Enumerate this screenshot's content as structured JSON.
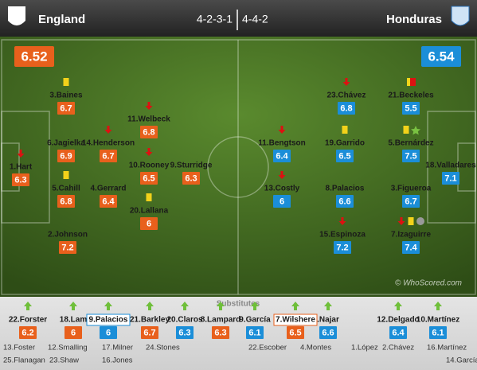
{
  "header": {
    "home_team": "England",
    "away_team": "Honduras",
    "home_formation": "4-2-3-1",
    "away_formation": "4-4-2"
  },
  "team_ratings": {
    "home": 6.52,
    "away": 6.54
  },
  "home_players": [
    {
      "name": "1.Hart",
      "rating": 6.3,
      "events": [
        "sub-off"
      ]
    },
    {
      "name": "3.Baines",
      "rating": 6.7,
      "events": [
        "yellow"
      ]
    },
    {
      "name": "6.Jagielka",
      "rating": 6.9,
      "events": []
    },
    {
      "name": "5.Cahill",
      "rating": 6.8,
      "events": [
        "yellow"
      ]
    },
    {
      "name": "2.Johnson",
      "rating": 7.2,
      "events": []
    },
    {
      "name": "14.Henderson",
      "rating": 6.7,
      "events": [
        "sub-off"
      ]
    },
    {
      "name": "4.Gerrard",
      "rating": 6.4,
      "events": []
    },
    {
      "name": "11.Welbeck",
      "rating": 6.8,
      "events": [
        "sub-off"
      ]
    },
    {
      "name": "10.Rooney",
      "rating": 6.5,
      "events": [
        "sub-off"
      ]
    },
    {
      "name": "20.Lallana",
      "rating": 6.0,
      "events": [
        "yellow"
      ]
    },
    {
      "name": "9.Sturridge",
      "rating": 6.3,
      "events": []
    }
  ],
  "away_players": [
    {
      "name": "23.Chávez",
      "rating": 6.8,
      "events": [
        "sub-off"
      ]
    },
    {
      "name": "21.Beckeles",
      "rating": 5.5,
      "events": [
        "red"
      ]
    },
    {
      "name": "11.Bengtson",
      "rating": 6.4,
      "events": [
        "sub-off"
      ]
    },
    {
      "name": "19.Garrido",
      "rating": 6.5,
      "events": [
        "yellow"
      ]
    },
    {
      "name": "5.Bernárdez",
      "rating": 7.5,
      "events": [
        "yellow",
        "star"
      ]
    },
    {
      "name": "18.Valladares",
      "rating": 7.1,
      "events": []
    },
    {
      "name": "13.Costly",
      "rating": 6.0,
      "events": [
        "sub-off"
      ]
    },
    {
      "name": "8.Palacios",
      "rating": 6.6,
      "events": []
    },
    {
      "name": "3.Figueroa",
      "rating": 6.7,
      "events": []
    },
    {
      "name": "15.Espinoza",
      "rating": 7.2,
      "events": [
        "sub-off"
      ]
    },
    {
      "name": "7.Izaguirre",
      "rating": 7.4,
      "events": [
        "sub-off",
        "yellow",
        "injury"
      ]
    }
  ],
  "watermark": "© WhoScored.com",
  "substitutes_label": "Substitutes",
  "substitutes": [
    {
      "name": "22.Forster",
      "rating": 6.2,
      "team": "home"
    },
    {
      "name": "18.Lam",
      "rating": 6.0,
      "team": "home"
    },
    {
      "name": "9.Palacios",
      "rating": 6.0,
      "team": "away",
      "highlight": true
    },
    {
      "name": "21.Barkley",
      "rating": 6.7,
      "team": "home"
    },
    {
      "name": "20.Claros",
      "rating": 6.3,
      "team": "away"
    },
    {
      "name": "8.Lampard",
      "rating": 6.3,
      "team": "home"
    },
    {
      "name": "9.García",
      "rating": 6.1,
      "team": "away"
    },
    {
      "name": "7.Wilshere",
      "rating": 6.5,
      "team": "home",
      "highlight": true
    },
    {
      "name": ".Najar",
      "rating": 6.6,
      "team": "away"
    },
    {
      "name": "12.Delgado",
      "rating": 6.4,
      "team": "away"
    },
    {
      "name": "10.Martínez",
      "rating": 6.1,
      "team": "away"
    }
  ],
  "bench": [
    "13.Foster",
    "12.Smalling",
    "17.Milner",
    "24.Stones",
    "22.Escober",
    "4.Montes",
    "1.López",
    "2.Chávez",
    "16.Martínez",
    "25.Flanagan",
    "23.Shaw",
    "16.Jones",
    "14.García"
  ]
}
